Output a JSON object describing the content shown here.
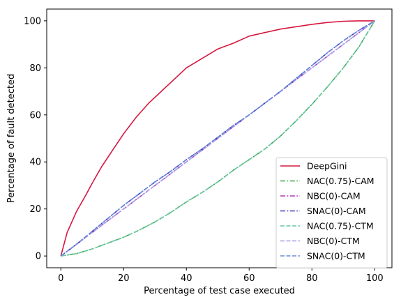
{
  "chart_data": {
    "type": "line",
    "title": "",
    "xlabel": "Percentage of test case executed",
    "ylabel": "Percentage of fault detected",
    "xlim": [
      -4.5,
      105.5
    ],
    "ylim": [
      -5,
      105
    ],
    "xticks": [
      0,
      20,
      40,
      60,
      80,
      100
    ],
    "yticks": [
      0,
      20,
      40,
      60,
      80,
      100
    ],
    "grid": false,
    "legend_position": "bottom-right",
    "series": [
      {
        "name": "DeepGini",
        "color": "#d6173f",
        "dash": "solid",
        "x": [
          0,
          2,
          5,
          8,
          10,
          13,
          16,
          18,
          20,
          24,
          28,
          32,
          36,
          40,
          45,
          50,
          55,
          60,
          65,
          70,
          75,
          80,
          85,
          90,
          95,
          100
        ],
        "y": [
          0,
          10,
          19,
          26,
          31,
          38,
          44,
          48,
          52,
          59,
          65,
          70,
          75,
          80,
          84,
          88,
          90.5,
          93.5,
          95,
          96.5,
          97.5,
          98.5,
          99.3,
          99.8,
          100,
          100
        ]
      },
      {
        "name": "NAC(0.75)-CAM",
        "color": "#3ea14a",
        "dash": "dashdot",
        "x": [
          0,
          5,
          10,
          15,
          20,
          25,
          30,
          35,
          40,
          45,
          50,
          55,
          60,
          65,
          70,
          75,
          80,
          85,
          90,
          95,
          100
        ],
        "y": [
          0,
          1,
          3,
          5.5,
          8,
          11,
          14.5,
          18.5,
          23,
          27,
          31.5,
          36.5,
          41,
          45.5,
          51,
          57.5,
          64.5,
          72,
          80,
          89,
          100
        ]
      },
      {
        "name": "NBC(0)-CAM",
        "color": "#b43ab4",
        "dash": "dashdot",
        "x": [
          0,
          100
        ],
        "y": [
          0,
          100
        ]
      },
      {
        "name": "SNAC(0)-CAM",
        "color": "#3a3ac8",
        "dash": "dashdot",
        "x": [
          0,
          5,
          10,
          15,
          20,
          25,
          30,
          35,
          40,
          45,
          50,
          55,
          60,
          65,
          70,
          75,
          80,
          85,
          90,
          95,
          100
        ],
        "y": [
          0,
          5,
          10.5,
          16,
          21.5,
          26.5,
          31.5,
          36,
          41,
          45.5,
          50.5,
          55.5,
          60,
          65,
          70,
          75.5,
          81,
          86.5,
          91.5,
          96,
          100
        ]
      },
      {
        "name": "NAC(0.75)-CTM",
        "color": "#66c8a0",
        "dash": "dashed",
        "x": [
          0,
          5,
          10,
          15,
          20,
          25,
          30,
          35,
          40,
          45,
          50,
          55,
          60,
          65,
          70,
          75,
          80,
          85,
          90,
          95,
          100
        ],
        "y": [
          0,
          1,
          3,
          5.5,
          8,
          11,
          14.5,
          18.5,
          23,
          27,
          31.5,
          36.5,
          41,
          45.5,
          51,
          57.5,
          64.5,
          72,
          80,
          89,
          100
        ]
      },
      {
        "name": "NBC(0)-CTM",
        "color": "#a8a0e8",
        "dash": "dashed",
        "x": [
          0,
          100
        ],
        "y": [
          0,
          100
        ]
      },
      {
        "name": "SNAC(0)-CTM",
        "color": "#6a8ad8",
        "dash": "dashed",
        "x": [
          0,
          5,
          10,
          15,
          20,
          25,
          30,
          35,
          40,
          45,
          50,
          55,
          60,
          65,
          70,
          75,
          80,
          85,
          90,
          95,
          100
        ],
        "y": [
          0,
          5,
          10.5,
          16,
          21.5,
          26.5,
          31.5,
          36,
          41,
          45.5,
          50.5,
          55.5,
          60,
          65,
          70,
          75.5,
          81,
          86.5,
          91.5,
          96,
          100
        ]
      }
    ]
  }
}
